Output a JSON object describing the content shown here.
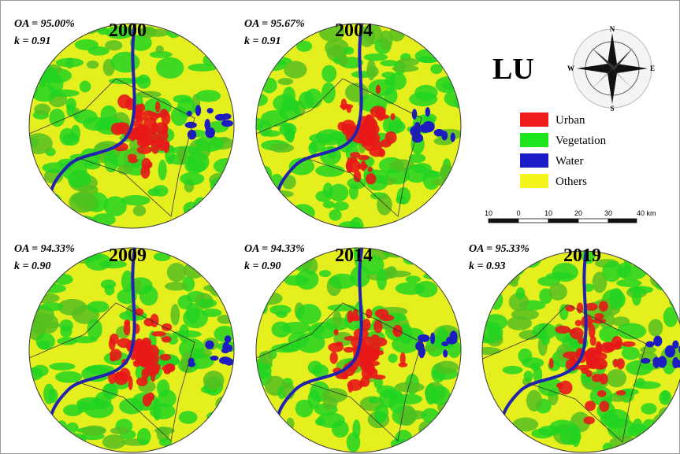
{
  "panels": [
    {
      "year": "2000",
      "oa": "OA = 95.00%",
      "k": "k = 0.91"
    },
    {
      "year": "2004",
      "oa": "OA = 95.67%",
      "k": "k = 0.91"
    },
    {
      "year": "2009",
      "oa": "OA = 94.33%",
      "k": "k = 0.90"
    },
    {
      "year": "2014",
      "oa": "OA = 94.33%",
      "k": "k = 0.90"
    },
    {
      "year": "2019",
      "oa": "OA = 95.33%",
      "k": "k = 0.93"
    }
  ],
  "legend": {
    "title": "LU",
    "items": [
      {
        "label": "Urban",
        "color": "#ee1c1c"
      },
      {
        "label": "Vegetation",
        "color": "#1ee61e"
      },
      {
        "label": "Water",
        "color": "#1c1cc8"
      },
      {
        "label": "Others",
        "color": "#f5f51c"
      }
    ]
  },
  "compass": {
    "n": "N",
    "s": "S",
    "e": "E",
    "w": "W"
  },
  "scale_bar": {
    "labels": [
      "10",
      "0",
      "10",
      "20",
      "30",
      "40 km"
    ]
  }
}
